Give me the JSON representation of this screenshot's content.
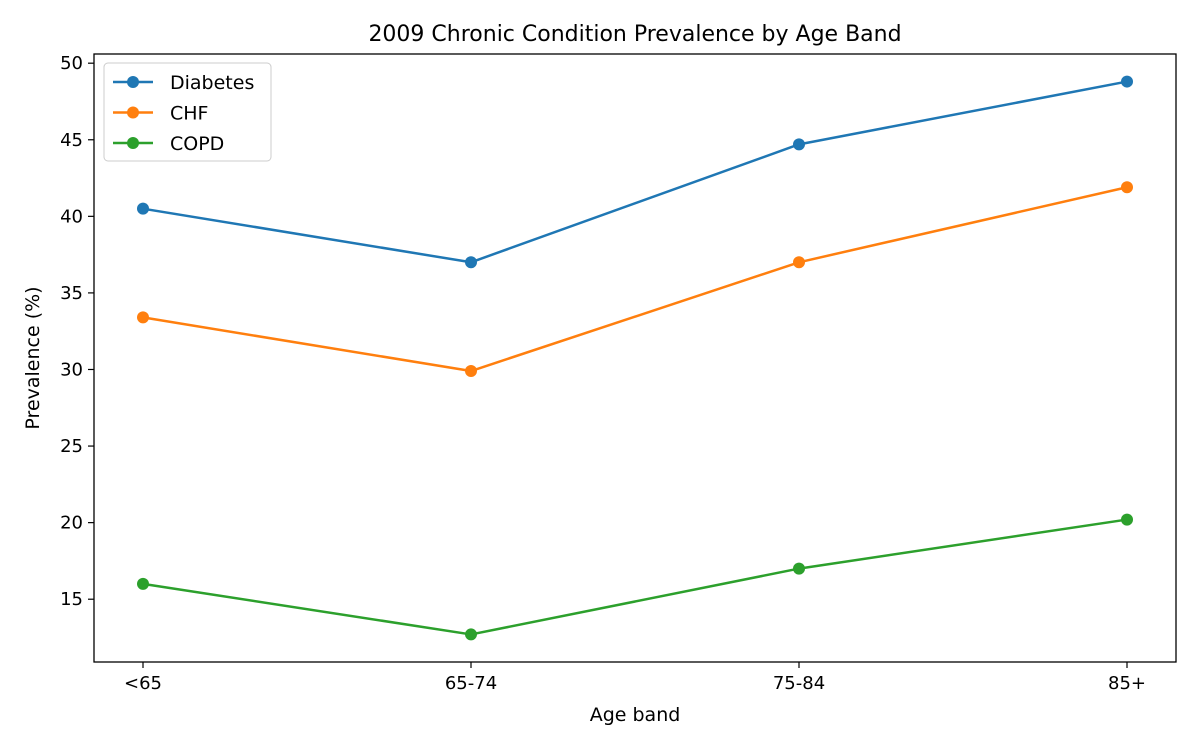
{
  "chart_data": {
    "type": "line",
    "title": "2009 Chronic Condition Prevalence by Age Band",
    "xlabel": "Age band",
    "ylabel": "Prevalence (%)",
    "categories": [
      "<65",
      "65-74",
      "75-84",
      "85+"
    ],
    "ylim": [
      10.9,
      50.6
    ],
    "yticks": [
      15,
      20,
      25,
      30,
      35,
      40,
      45,
      50
    ],
    "grid": false,
    "legend_position": "top-left",
    "series": [
      {
        "name": "Diabetes",
        "color": "#1f77b4",
        "values": [
          40.5,
          37.0,
          44.7,
          48.8
        ]
      },
      {
        "name": "CHF",
        "color": "#ff7f0e",
        "values": [
          33.4,
          29.9,
          37.0,
          41.9
        ]
      },
      {
        "name": "COPD",
        "color": "#2ca02c",
        "values": [
          16.0,
          12.7,
          17.0,
          20.2
        ]
      }
    ]
  }
}
